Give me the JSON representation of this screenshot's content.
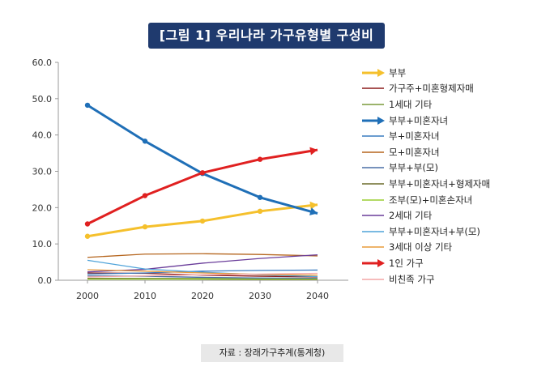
{
  "header": {
    "title": "[그림 1] 우리나라 가구유형별 구성비"
  },
  "source": {
    "text": "자료 : 장래가구추계(통계청)"
  },
  "chart_data": {
    "type": "line",
    "x": [
      "2000",
      "2010",
      "2020",
      "2030",
      "2040"
    ],
    "ylim": [
      0,
      60
    ],
    "yticks": [
      "0.0",
      "10.0",
      "20.0",
      "30.0",
      "40.0",
      "50.0",
      "60.0"
    ],
    "grid": false,
    "legend_position": "right",
    "series": [
      {
        "name": "부부",
        "color": "#f5c02c",
        "bold": true,
        "values": [
          12.1,
          14.7,
          16.3,
          19.0,
          20.8
        ]
      },
      {
        "name": "가구주+미혼형제자매",
        "color": "#8b1a1a",
        "bold": false,
        "values": [
          2.0,
          1.9,
          1.4,
          1.1,
          0.9
        ]
      },
      {
        "name": "1세대 기타",
        "color": "#7a9a3a",
        "bold": false,
        "values": [
          0.5,
          0.5,
          0.5,
          0.5,
          0.5
        ]
      },
      {
        "name": "부부+미혼자녀",
        "color": "#1f6fb7",
        "bold": true,
        "values": [
          48.2,
          38.3,
          29.4,
          22.8,
          18.4
        ]
      },
      {
        "name": "부+미혼자녀",
        "color": "#3a7bbf",
        "bold": false,
        "values": [
          1.7,
          2.0,
          2.5,
          2.7,
          2.8
        ]
      },
      {
        "name": "모+미혼자녀",
        "color": "#b5651d",
        "bold": false,
        "values": [
          6.3,
          7.2,
          7.3,
          7.1,
          6.7
        ]
      },
      {
        "name": "부부+부(모)",
        "color": "#4a6fa5",
        "bold": false,
        "values": [
          1.2,
          1.1,
          0.8,
          0.6,
          0.5
        ]
      },
      {
        "name": "부부+미혼자녀+형제자매",
        "color": "#6b6b2a",
        "bold": false,
        "values": [
          0.5,
          0.4,
          0.3,
          0.2,
          0.2
        ]
      },
      {
        "name": "조부(모)+미혼손자녀",
        "color": "#9acd32",
        "bold": false,
        "values": [
          0.3,
          0.3,
          0.3,
          0.3,
          0.3
        ]
      },
      {
        "name": "2세대 기타",
        "color": "#6a3d9a",
        "bold": false,
        "values": [
          2.3,
          3.0,
          4.7,
          6.0,
          7.0
        ]
      },
      {
        "name": "부부+미혼자녀+부(모)",
        "color": "#4fa3d9",
        "bold": false,
        "values": [
          5.5,
          3.1,
          2.2,
          1.5,
          1.0
        ]
      },
      {
        "name": "3세대 이상 기타",
        "color": "#e89b3a",
        "bold": false,
        "values": [
          2.9,
          2.5,
          2.0,
          1.6,
          1.4
        ]
      },
      {
        "name": "1인 가구",
        "color": "#e02020",
        "bold": true,
        "values": [
          15.5,
          23.3,
          29.6,
          33.3,
          35.9
        ]
      },
      {
        "name": "비친족 가구",
        "color": "#f4a6a6",
        "bold": false,
        "values": [
          0.9,
          1.2,
          1.5,
          1.7,
          1.9
        ]
      }
    ]
  }
}
